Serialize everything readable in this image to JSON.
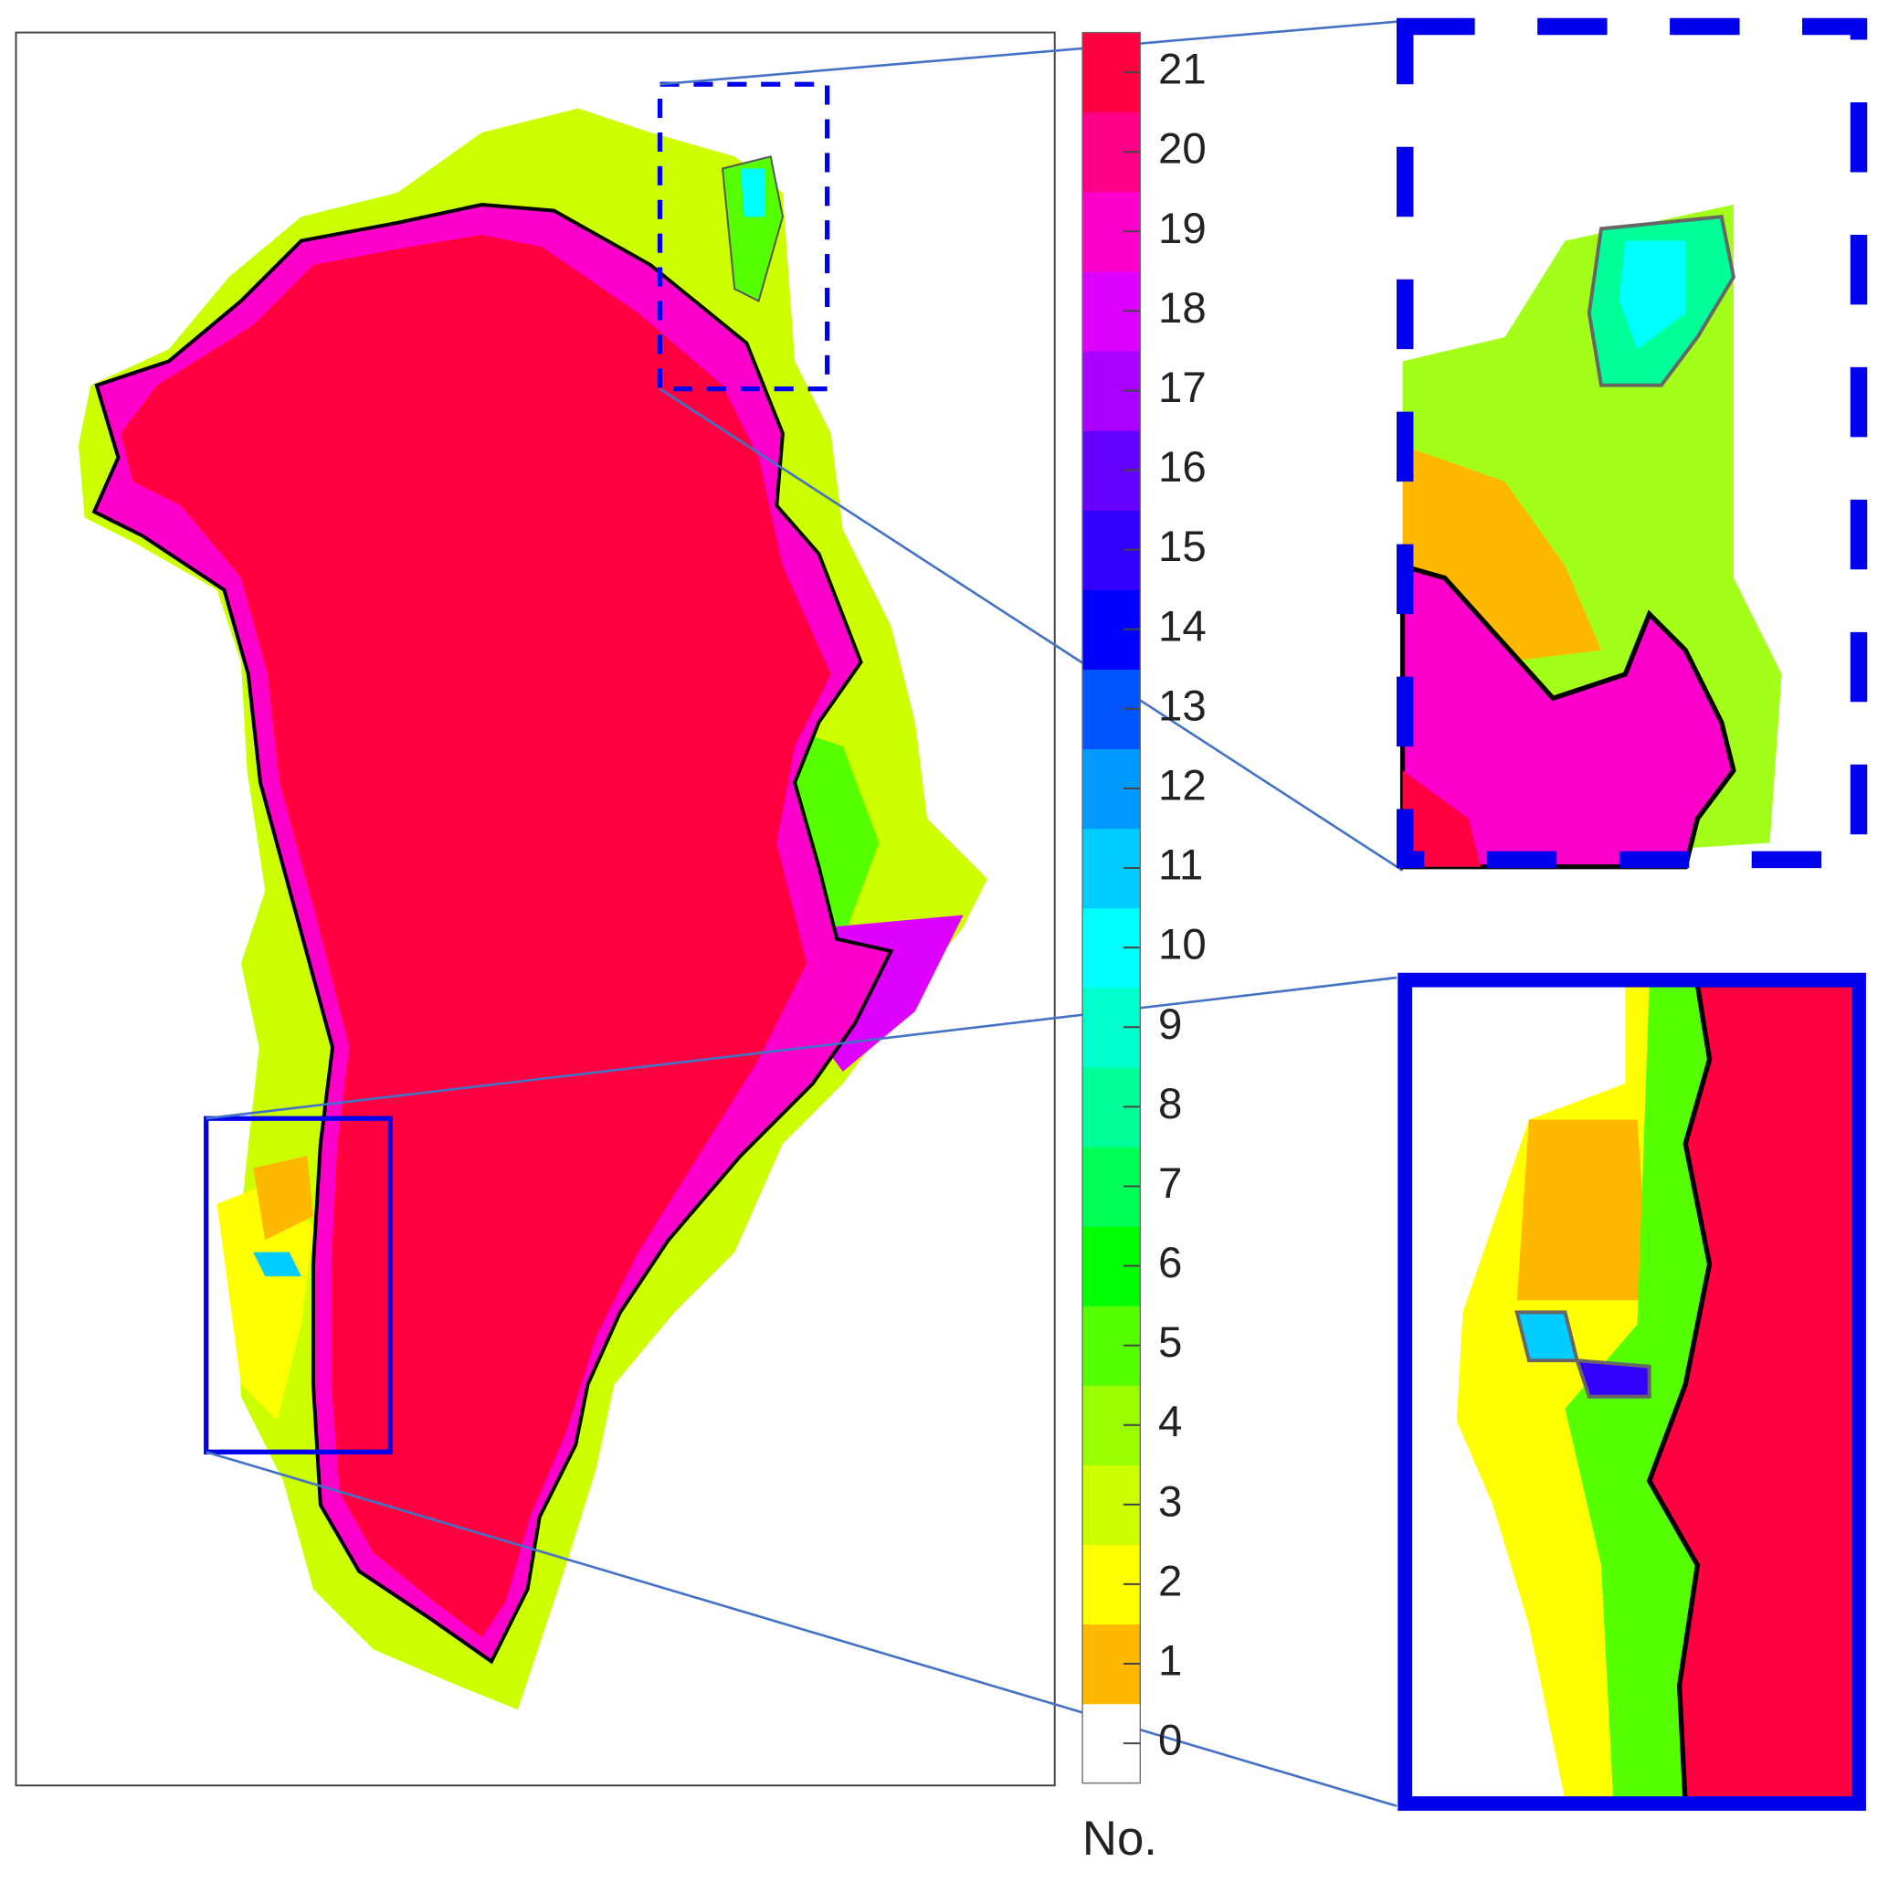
{
  "colorbar": {
    "label": "No.",
    "ticks": [
      0,
      1,
      2,
      3,
      4,
      5,
      6,
      7,
      8,
      9,
      10,
      11,
      12,
      13,
      14,
      15,
      16,
      17,
      18,
      19,
      20,
      21
    ],
    "colors": [
      "#ffffff",
      "#ffb800",
      "#ffff00",
      "#ccff00",
      "#99ff00",
      "#55ff00",
      "#00ff00",
      "#00ff55",
      "#00ff99",
      "#00ffcc",
      "#00ffff",
      "#00ccff",
      "#0099ff",
      "#0055ff",
      "#0000ff",
      "#3300ff",
      "#6600ff",
      "#aa00ff",
      "#dd00ff",
      "#ff00cc",
      "#ff0088",
      "#ff0040"
    ]
  }
}
